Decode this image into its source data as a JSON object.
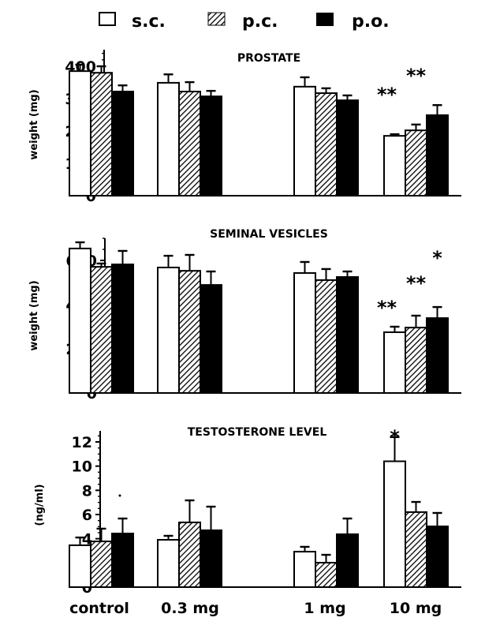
{
  "legend": {
    "items": [
      {
        "key": "sc",
        "label": "s.c.",
        "style": "open"
      },
      {
        "key": "pc",
        "label": "p.c.",
        "style": "hatched"
      },
      {
        "key": "po",
        "label": "p.o.",
        "style": "solid"
      }
    ]
  },
  "colors": {
    "ink": "#000000",
    "background": "#ffffff"
  },
  "chart_data": [
    {
      "type": "bar",
      "title": "PROSTATE",
      "xlabel": "",
      "ylabel": "weight (mg)",
      "ylim": [
        0,
        450
      ],
      "yticks": [
        0,
        100,
        200,
        300,
        400
      ],
      "yminor_step": 20,
      "categories": [
        "control",
        "0.3 mg",
        "1 mg",
        "10 mg"
      ],
      "series": [
        {
          "name": "s.c.",
          "values": [
            385,
            349,
            337,
            185
          ],
          "errors": [
            20,
            26,
            29,
            5
          ]
        },
        {
          "name": "p.c.",
          "values": [
            380,
            322,
            317,
            202
          ],
          "errors": [
            20,
            29,
            15,
            18
          ]
        },
        {
          "name": "p.o.",
          "values": [
            322,
            307,
            295,
            249
          ],
          "errors": [
            19,
            17,
            15,
            31
          ]
        }
      ],
      "annotations": [
        {
          "text": "**",
          "category": "10 mg",
          "series": "s.c."
        },
        {
          "text": "**",
          "category": "10 mg",
          "series": "p.c."
        }
      ]
    },
    {
      "type": "bar",
      "title": "SEMINAL VESICLES",
      "xlabel": "",
      "ylabel": "weight (mg)",
      "ylim": [
        0,
        700
      ],
      "yticks": [
        0,
        200,
        400,
        600
      ],
      "yminor_step": 50,
      "categories": [
        "control",
        "0.3 mg",
        "1 mg",
        "10 mg"
      ],
      "series": [
        {
          "name": "s.c.",
          "values": [
            654,
            568,
            543,
            275
          ],
          "errors": [
            28,
            53,
            50,
            25
          ]
        },
        {
          "name": "p.c.",
          "values": [
            571,
            553,
            511,
            296
          ],
          "errors": [
            15,
            72,
            50,
            54
          ]
        },
        {
          "name": "p.o.",
          "values": [
            582,
            489,
            525,
            339
          ],
          "errors": [
            61,
            61,
            25,
            50
          ]
        }
      ],
      "annotations": [
        {
          "text": "**",
          "category": "10 mg",
          "series": "s.c."
        },
        {
          "text": "**",
          "category": "10 mg",
          "series": "p.c."
        },
        {
          "text": "*",
          "category": "10 mg",
          "series": "p.o."
        }
      ]
    },
    {
      "type": "bar",
      "title": "TESTOSTERONE LEVEL",
      "xlabel": "",
      "ylabel": "(ng/ml)",
      "ylim": [
        0,
        13
      ],
      "yticks": [
        0,
        2,
        4,
        6,
        8,
        10,
        12
      ],
      "yminor_step": 0.5,
      "categories": [
        "control",
        "0.3 mg",
        "1 mg",
        "10 mg"
      ],
      "series": [
        {
          "name": "s.c.",
          "values": [
            3.46,
            3.91,
            2.93,
            10.4
          ],
          "errors": [
            0.64,
            0.33,
            0.4,
            2.0
          ]
        },
        {
          "name": "p.c.",
          "values": [
            3.78,
            5.35,
            2.02,
            6.2
          ],
          "errors": [
            1.05,
            1.82,
            0.65,
            0.84
          ]
        },
        {
          "name": "p.o.",
          "values": [
            4.43,
            4.7,
            4.37,
            5.02
          ],
          "errors": [
            1.24,
            1.95,
            1.3,
            1.11
          ]
        }
      ],
      "annotations": [
        {
          "text": "*",
          "category": "10 mg",
          "series": "s.c."
        }
      ],
      "show_category_labels": true
    }
  ]
}
